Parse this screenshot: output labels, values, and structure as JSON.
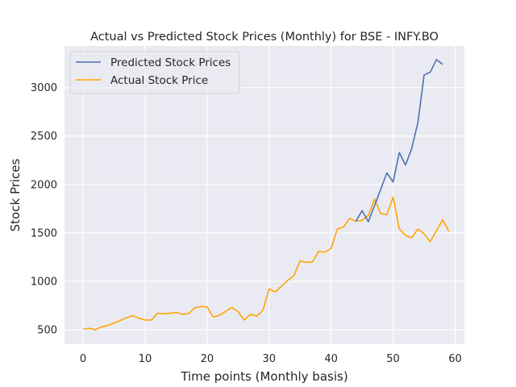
{
  "chart_data": {
    "type": "line",
    "title": "Actual vs Predicted Stock Prices (Monthly) for BSE - INFY.BO",
    "xlabel": "Time points (Monthly basis)",
    "ylabel": "Stock Prices",
    "xlim": [
      -3,
      61.5
    ],
    "ylim": [
      350,
      3430
    ],
    "xticks": [
      0,
      10,
      20,
      30,
      40,
      50,
      60
    ],
    "yticks": [
      500,
      1000,
      1500,
      2000,
      2500,
      3000
    ],
    "grid": true,
    "legend_position": "upper-left",
    "background": "#eaeaf2",
    "series": [
      {
        "name": "Predicted Stock Prices",
        "color": "#4c72b0",
        "x": [
          44,
          45,
          46,
          47,
          48,
          49,
          50,
          51,
          52,
          53,
          54,
          55,
          56,
          57,
          58
        ],
        "y": [
          1620,
          1730,
          1615,
          1780,
          1950,
          2120,
          2025,
          2330,
          2200,
          2370,
          2640,
          3130,
          3160,
          3290,
          3240
        ]
      },
      {
        "name": "Actual Stock Price",
        "color": "#ffa500",
        "x": [
          0,
          1,
          2,
          3,
          4,
          5,
          6,
          7,
          8,
          9,
          10,
          11,
          12,
          13,
          14,
          15,
          16,
          17,
          18,
          19,
          20,
          21,
          22,
          23,
          24,
          25,
          26,
          27,
          28,
          29,
          30,
          31,
          32,
          33,
          34,
          35,
          36,
          37,
          38,
          39,
          40,
          41,
          42,
          43,
          44,
          45,
          46,
          47,
          48,
          49,
          50,
          51,
          52,
          53,
          54,
          55,
          56,
          57,
          58,
          59
        ],
        "y": [
          505,
          515,
          500,
          530,
          545,
          570,
          595,
          625,
          645,
          620,
          600,
          600,
          670,
          665,
          670,
          680,
          660,
          665,
          725,
          740,
          735,
          630,
          650,
          690,
          730,
          685,
          600,
          660,
          640,
          700,
          920,
          890,
          950,
          1010,
          1060,
          1210,
          1195,
          1200,
          1310,
          1300,
          1340,
          1540,
          1560,
          1650,
          1620,
          1630,
          1680,
          1850,
          1700,
          1690,
          1870,
          1540,
          1475,
          1450,
          1540,
          1490,
          1410,
          1525,
          1635,
          1515
        ]
      }
    ]
  }
}
